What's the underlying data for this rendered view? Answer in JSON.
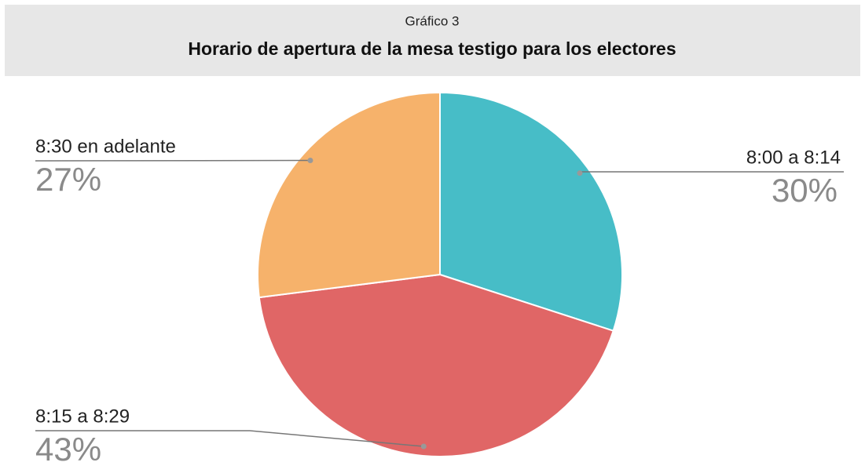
{
  "chart_data": {
    "type": "pie",
    "subtitle": "Gráfico 3",
    "title": "Horario de apertura de la mesa testigo para los electores",
    "categories": [
      "8:00 a 8:14",
      "8:15 a 8:29",
      "8:30 en adelante"
    ],
    "values": [
      30,
      43,
      27
    ],
    "value_labels": [
      "30%",
      "43%",
      "27%"
    ],
    "colors": [
      "#47bdc7",
      "#e06666",
      "#f6b26b"
    ]
  }
}
